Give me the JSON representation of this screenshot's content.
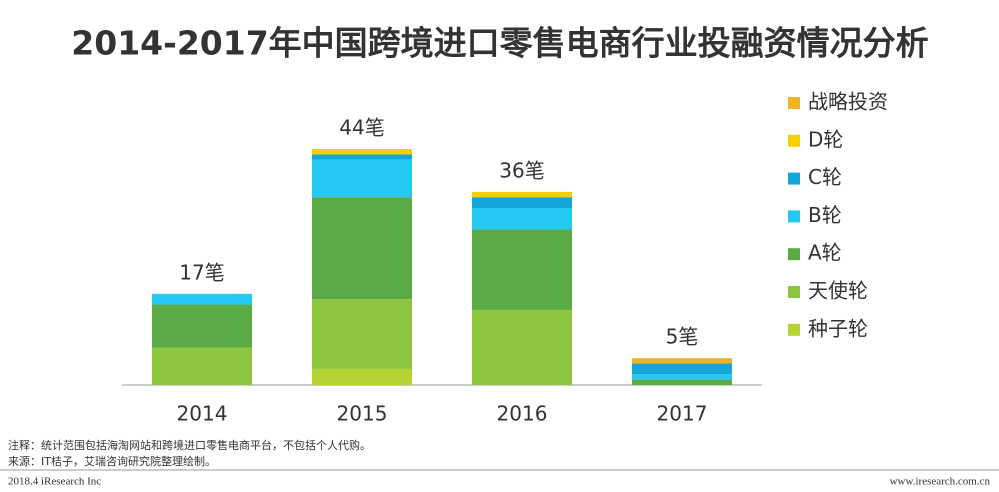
{
  "chart_data": {
    "type": "stacked_bar",
    "title": "2014-2017年中国跨境进口零售电商行业投融资情况分析",
    "categories": [
      "2014",
      "2015",
      "2016",
      "2017"
    ],
    "series": [
      {
        "name": "种子轮",
        "color": "#b5d334",
        "values": [
          0,
          3,
          0,
          0
        ]
      },
      {
        "name": "天使轮",
        "color": "#8dc63f",
        "values": [
          7,
          13,
          14,
          0
        ]
      },
      {
        "name": "A轮",
        "color": "#5aaa46",
        "values": [
          8,
          19,
          15,
          1
        ]
      },
      {
        "name": "B轮",
        "color": "#25c8f0",
        "values": [
          2,
          7,
          4,
          1
        ]
      },
      {
        "name": "C轮",
        "color": "#14a6d6",
        "values": [
          0,
          1,
          2,
          2
        ]
      },
      {
        "name": "D轮",
        "color": "#f5d000",
        "values": [
          0,
          1,
          1,
          0
        ]
      },
      {
        "name": "战略投资",
        "color": "#f0b323",
        "values": [
          0,
          0,
          0,
          1
        ]
      }
    ],
    "totals": [
      17,
      44,
      36,
      5
    ],
    "value_labels": [
      "17笔",
      "44笔",
      "36笔",
      "5笔"
    ],
    "ylim": [
      0,
      44
    ]
  },
  "footer": {
    "note": "注释：统计范围包括海淘网站和跨境进口零售电商平台，不包括个人代购。",
    "source": "来源：IT桔子，艾瑞咨询研究院整理绘制。",
    "copyright": "2018.4 iResearch Inc",
    "url": "www.iresearch.com.cn"
  }
}
